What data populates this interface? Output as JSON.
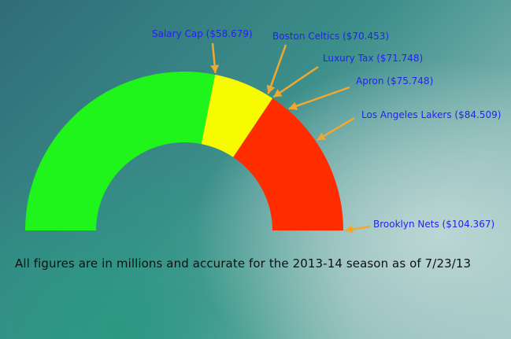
{
  "chart_data": {
    "type": "gauge",
    "range": [
      0,
      104.367
    ],
    "segments": [
      {
        "from": 0,
        "to": 58.679,
        "color": "#1ff51a"
      },
      {
        "from": 58.679,
        "to": 71.748,
        "color": "#f7fb00"
      },
      {
        "from": 71.748,
        "to": 104.367,
        "color": "#ff2c00"
      }
    ],
    "markers": [
      {
        "label": "Salary Cap ($58.679)",
        "value": 58.679
      },
      {
        "label": "Boston Celtics ($70.453)",
        "value": 70.453
      },
      {
        "label": "Luxury Tax ($71.748)",
        "value": 71.748
      },
      {
        "label": "Apron ($75.748)",
        "value": 75.748
      },
      {
        "label": "Los Angeles Lakers ($84.509)",
        "value": 84.509
      },
      {
        "label": "Brooklyn Nets ($104.367)",
        "value": 104.367
      }
    ],
    "caption": "All figures are in millions and accurate for the 2013-14 season as of 7/23/13"
  },
  "colors": {
    "arrow": "#f0a830",
    "label": "#2323f0"
  }
}
